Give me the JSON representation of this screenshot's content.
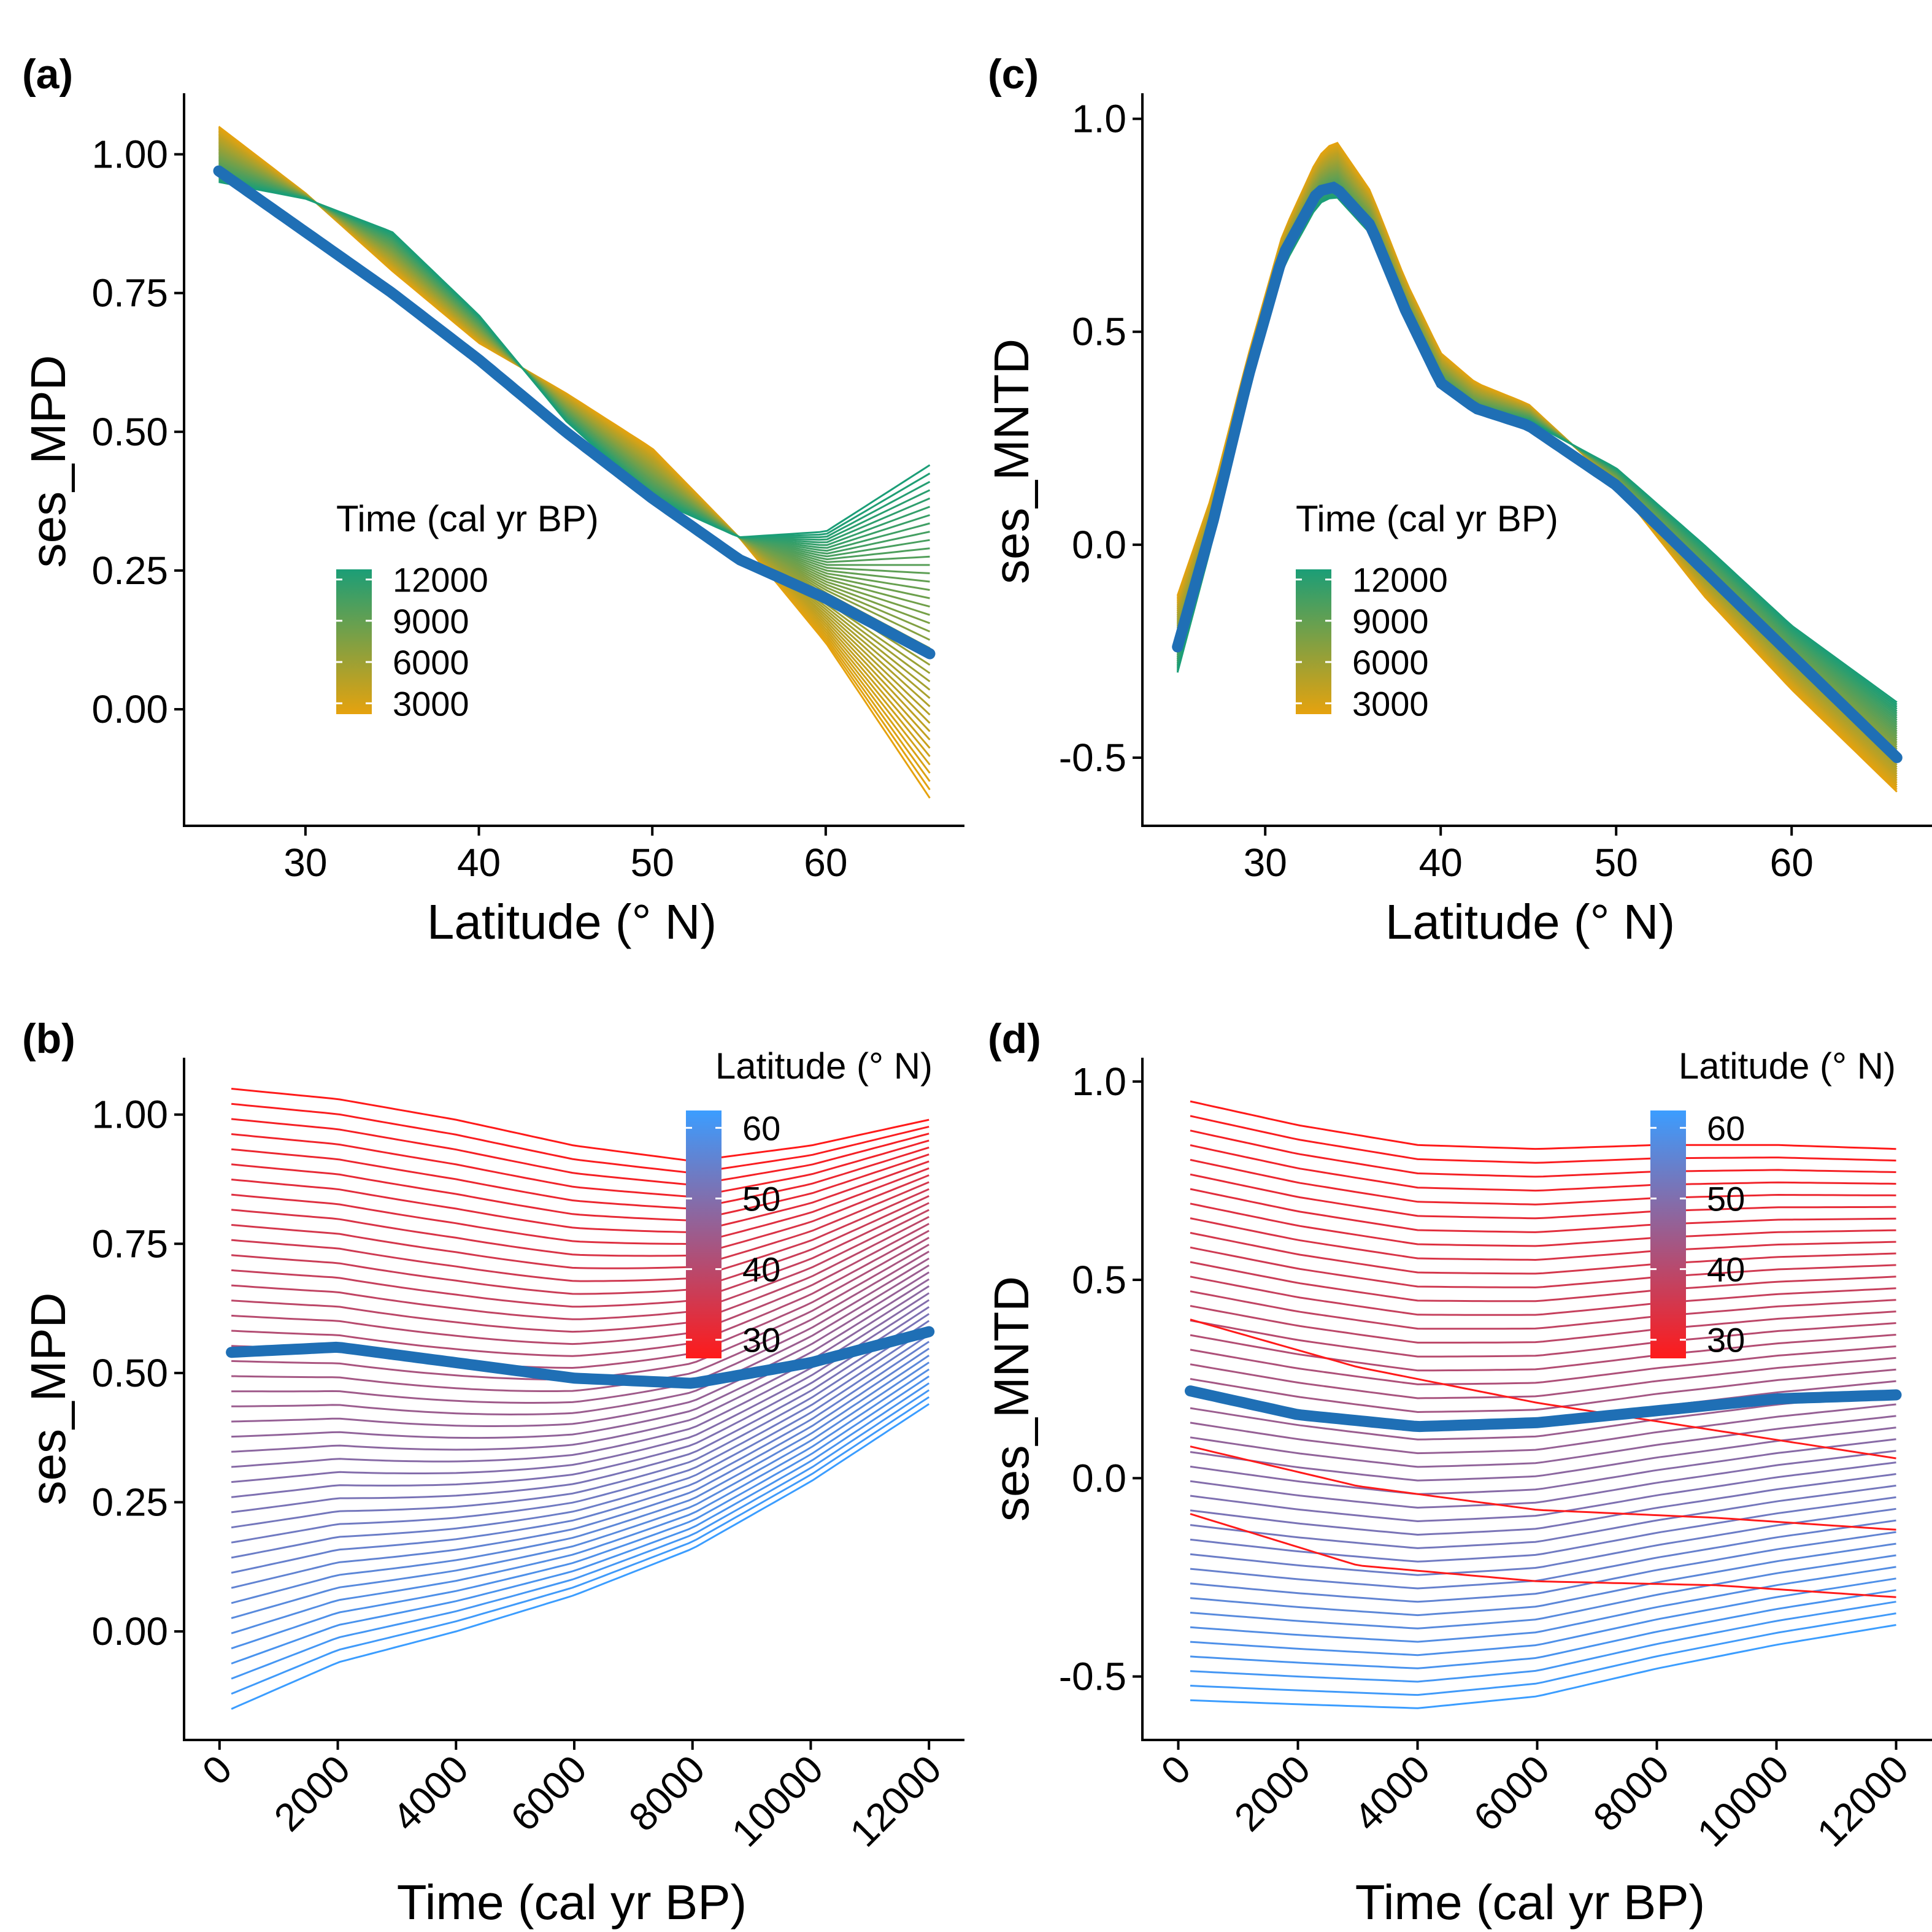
{
  "chart_data": [
    {
      "id": "a",
      "panel_label": "(a)",
      "type": "line",
      "xlabel": "Latitude (° N)",
      "ylabel": "ses_MPD",
      "xlim": [
        23,
        68
      ],
      "ylim": [
        -0.21,
        1.11
      ],
      "x_ticks": [
        30,
        40,
        50,
        60
      ],
      "y_ticks": [
        0.0,
        0.25,
        0.5,
        0.75,
        1.0
      ],
      "y_tick_labels": [
        "0.00",
        "0.25",
        "0.50",
        "0.75",
        "1.00"
      ],
      "x_tick_rotate": false,
      "line_x_range": [
        25,
        66
      ],
      "legend": {
        "title": "Time (cal yr BP)",
        "ticks": [
          "12000",
          "9000",
          "6000",
          "3000"
        ],
        "gradient": [
          "#1b9e77",
          "#e6a20e"
        ],
        "position": "inside-left"
      },
      "family": {
        "color_ramp": [
          "#e6a20e",
          "#1b9e77"
        ],
        "count": 41,
        "start": {
          "x": [
            25,
            30,
            35,
            40,
            45,
            50,
            55,
            60,
            66
          ],
          "y": [
            1.05,
            0.93,
            0.79,
            0.66,
            0.57,
            0.47,
            0.31,
            0.12,
            -0.16
          ]
        },
        "end": {
          "x": [
            25,
            30,
            35,
            40,
            45,
            50,
            55,
            60,
            66
          ],
          "y": [
            0.95,
            0.92,
            0.86,
            0.71,
            0.52,
            0.38,
            0.31,
            0.32,
            0.44
          ]
        }
      },
      "mean_line": {
        "color": "#1f6fb5",
        "x": [
          25,
          30,
          35,
          40,
          45,
          50,
          55,
          60,
          66
        ],
        "y": [
          0.97,
          0.86,
          0.75,
          0.63,
          0.5,
          0.38,
          0.27,
          0.2,
          0.1
        ]
      }
    },
    {
      "id": "c",
      "panel_label": "(c)",
      "type": "line",
      "xlabel": "Latitude (° N)",
      "ylabel": "ses_MNTD",
      "xlim": [
        23,
        68
      ],
      "ylim": [
        -0.66,
        1.06
      ],
      "x_ticks": [
        30,
        40,
        50,
        60
      ],
      "y_ticks": [
        -0.5,
        0.0,
        0.5,
        1.0
      ],
      "y_tick_labels": [
        "-0.5",
        "0.0",
        "0.5",
        "1.0"
      ],
      "x_tick_rotate": false,
      "line_x_range": [
        25,
        66
      ],
      "legend": {
        "title": "Time (cal yr BP)",
        "ticks": [
          "12000",
          "9000",
          "6000",
          "3000"
        ],
        "gradient": [
          "#1b9e77",
          "#e6a20e"
        ],
        "position": "inside-center"
      },
      "family": {
        "color_ramp": [
          "#e6a20e",
          "#1b9e77"
        ],
        "count": 41,
        "start": {
          "x": [
            25,
            27,
            29,
            31,
            33,
            34,
            36,
            38,
            40,
            42,
            45,
            50,
            55,
            60,
            66
          ],
          "y": [
            -0.12,
            0.12,
            0.44,
            0.73,
            0.91,
            0.95,
            0.83,
            0.62,
            0.45,
            0.38,
            0.33,
            0.14,
            -0.12,
            -0.34,
            -0.58
          ]
        },
        "end": {
          "x": [
            25,
            27,
            29,
            31,
            33,
            34,
            36,
            38,
            40,
            42,
            45,
            50,
            55,
            60,
            66
          ],
          "y": [
            -0.3,
            0.01,
            0.36,
            0.65,
            0.8,
            0.82,
            0.73,
            0.53,
            0.37,
            0.31,
            0.29,
            0.18,
            0.0,
            -0.19,
            -0.37
          ]
        }
      },
      "mean_line": {
        "color": "#1f6fb5",
        "x": [
          25,
          27,
          29,
          31,
          33,
          34,
          36,
          38,
          40,
          42,
          45,
          50,
          55,
          60,
          66
        ],
        "y": [
          -0.24,
          0.05,
          0.39,
          0.68,
          0.83,
          0.84,
          0.75,
          0.55,
          0.38,
          0.32,
          0.28,
          0.14,
          -0.06,
          -0.26,
          -0.5
        ]
      }
    },
    {
      "id": "b",
      "panel_label": "(b)",
      "type": "line",
      "xlabel": "Time (cal yr BP)",
      "ylabel": "ses_MPD",
      "xlim": [
        -600,
        12600
      ],
      "ylim": [
        -0.21,
        1.11
      ],
      "x_ticks": [
        0,
        2000,
        4000,
        6000,
        8000,
        10000,
        12000
      ],
      "y_ticks": [
        0.0,
        0.25,
        0.5,
        0.75,
        1.0
      ],
      "y_tick_labels": [
        "0.00",
        "0.25",
        "0.50",
        "0.75",
        "1.00"
      ],
      "x_tick_rotate": true,
      "line_x_range": [
        200,
        12000
      ],
      "legend": {
        "title": "Latitude (° N)",
        "ticks": [
          "60",
          "50",
          "40",
          "30"
        ],
        "gradient": [
          "#3b9dff",
          "#ff1a1a"
        ],
        "position": "inside-top-right"
      },
      "family": {
        "color_ramp": [
          "#ff1a1a",
          "#3b9dff"
        ],
        "count": 42,
        "start": {
          "x": [
            200,
            2000,
            4000,
            6000,
            8000,
            10000,
            12000
          ],
          "y": [
            1.05,
            1.03,
            0.99,
            0.94,
            0.91,
            0.94,
            0.99
          ]
        },
        "end": {
          "x": [
            200,
            2000,
            4000,
            6000,
            8000,
            10000,
            12000
          ],
          "y": [
            -0.15,
            -0.06,
            0.0,
            0.07,
            0.16,
            0.29,
            0.44
          ]
        },
        "mid_dip": 0.12
      },
      "mean_line": {
        "color": "#1f6fb5",
        "x": [
          200,
          2000,
          4000,
          6000,
          8000,
          10000,
          12000
        ],
        "y": [
          0.54,
          0.55,
          0.52,
          0.49,
          0.48,
          0.52,
          0.58
        ]
      }
    },
    {
      "id": "d",
      "panel_label": "(d)",
      "type": "line",
      "xlabel": "Time (cal yr BP)",
      "ylabel": "ses_MNTD",
      "xlim": [
        -600,
        12600
      ],
      "ylim": [
        -0.66,
        1.06
      ],
      "x_ticks": [
        0,
        2000,
        4000,
        6000,
        8000,
        10000,
        12000
      ],
      "y_ticks": [
        -0.5,
        0.0,
        0.5,
        1.0
      ],
      "y_tick_labels": [
        "-0.5",
        "0.0",
        "0.5",
        "1.0"
      ],
      "x_tick_rotate": true,
      "line_x_range": [
        200,
        12000
      ],
      "legend": {
        "title": "Latitude (° N)",
        "ticks": [
          "60",
          "50",
          "40",
          "30"
        ],
        "gradient": [
          "#3b9dff",
          "#ff1a1a"
        ],
        "position": "inside-top-right"
      },
      "family": {
        "color_ramp": [
          "#ff1a1a",
          "#3b9dff"
        ],
        "count": 42,
        "start": {
          "x": [
            200,
            2000,
            4000,
            6000,
            8000,
            10000,
            12000
          ],
          "y": [
            0.95,
            0.89,
            0.84,
            0.83,
            0.84,
            0.84,
            0.83
          ]
        },
        "end": {
          "x": [
            200,
            2000,
            4000,
            6000,
            8000,
            10000,
            12000
          ],
          "y": [
            -0.56,
            -0.57,
            -0.58,
            -0.55,
            -0.48,
            -0.42,
            -0.37
          ]
        },
        "mid_dip": 0.03
      },
      "extra_lines": [
        {
          "color": "#ff1a1a",
          "x": [
            200,
            3000,
            6000,
            9000,
            12000
          ],
          "y": [
            0.08,
            -0.02,
            -0.08,
            -0.1,
            -0.13
          ]
        },
        {
          "color": "#ff1a1a",
          "x": [
            200,
            3000,
            6000,
            9000,
            12000
          ],
          "y": [
            -0.09,
            -0.22,
            -0.26,
            -0.27,
            -0.3
          ]
        },
        {
          "color": "#ff1a1a",
          "x": [
            200,
            3000,
            6000,
            9000,
            12000
          ],
          "y": [
            0.4,
            0.28,
            0.19,
            0.12,
            0.05
          ]
        }
      ],
      "mean_line": {
        "color": "#1f6fb5",
        "x": [
          200,
          2000,
          4000,
          6000,
          8000,
          10000,
          12000
        ],
        "y": [
          0.22,
          0.16,
          0.13,
          0.14,
          0.17,
          0.2,
          0.21
        ]
      }
    }
  ]
}
